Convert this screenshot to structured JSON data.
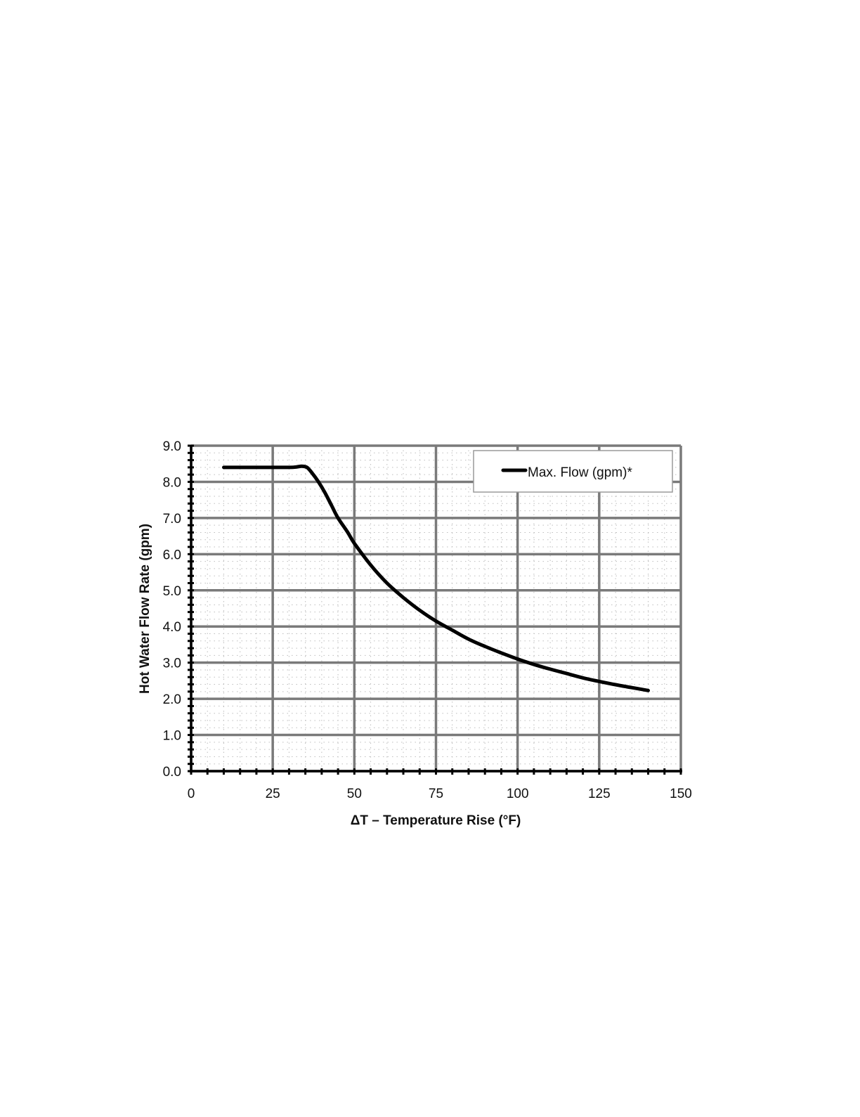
{
  "chart_data": {
    "type": "line",
    "title": "",
    "xlabel": "ΔT – Temperature Rise (°F)",
    "ylabel": "Hot Water Flow Rate (gpm)",
    "xlim": [
      0,
      150
    ],
    "ylim": [
      0,
      9
    ],
    "x_ticks": [
      "0",
      "25",
      "50",
      "75",
      "100",
      "125",
      "150"
    ],
    "y_ticks": [
      "0.0",
      "1.0",
      "2.0",
      "3.0",
      "4.0",
      "5.0",
      "6.0",
      "7.0",
      "8.0",
      "9.0"
    ],
    "grid": true,
    "legend_position": "top-right",
    "series": [
      {
        "name": "Max. Flow (gpm)*",
        "color": "#000000",
        "points": [
          [
            10,
            8.4
          ],
          [
            20,
            8.4
          ],
          [
            30,
            8.4
          ],
          [
            32,
            8.41
          ],
          [
            34,
            8.43
          ],
          [
            35.5,
            8.4
          ],
          [
            37,
            8.25
          ],
          [
            39,
            8.0
          ],
          [
            41,
            7.7
          ],
          [
            43,
            7.35
          ],
          [
            45,
            7.0
          ],
          [
            48,
            6.6
          ],
          [
            50,
            6.3
          ],
          [
            55,
            5.7
          ],
          [
            60,
            5.2
          ],
          [
            65,
            4.8
          ],
          [
            70,
            4.45
          ],
          [
            75,
            4.15
          ],
          [
            80,
            3.9
          ],
          [
            85,
            3.65
          ],
          [
            90,
            3.45
          ],
          [
            95,
            3.27
          ],
          [
            100,
            3.1
          ],
          [
            105,
            2.95
          ],
          [
            110,
            2.82
          ],
          [
            115,
            2.7
          ],
          [
            120,
            2.58
          ],
          [
            125,
            2.48
          ],
          [
            130,
            2.39
          ],
          [
            135,
            2.31
          ],
          [
            140,
            2.23
          ]
        ]
      }
    ]
  },
  "colors": {
    "major_grid": "#7a7a7a",
    "minor_grid": "#bdbdbd",
    "axis": "#000000",
    "legend_border": "#9a9a9a"
  }
}
